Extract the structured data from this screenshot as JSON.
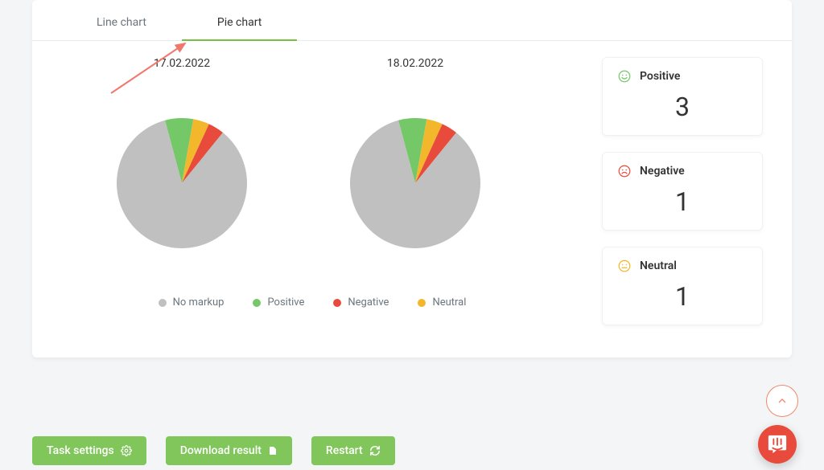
{
  "colors": {
    "accent_green": "#76c043",
    "btn_green": "#80c65b",
    "btn_text": "#ffffff",
    "positive": "#74c868",
    "negative": "#e84a3b",
    "neutral": "#f2b72a",
    "nomarkup": "#c0c0c0",
    "arrow": "#f0796b",
    "scroll_border": "#f08a6a",
    "intercom_bg": "#e84a3b"
  },
  "tabs": [
    {
      "label": "Line chart",
      "active": false
    },
    {
      "label": "Pie chart",
      "active": true
    }
  ],
  "charts": [
    {
      "title": "17.02.2022",
      "type": "pie",
      "slices": [
        {
          "label": "No markup",
          "value": 85,
          "color": "#c0c0c0"
        },
        {
          "label": "Positive",
          "value": 7,
          "color": "#74c868"
        },
        {
          "label": "Neutral",
          "value": 4,
          "color": "#f2b72a"
        },
        {
          "label": "Negative",
          "value": 4,
          "color": "#e84a3b"
        }
      ]
    },
    {
      "title": "18.02.2022",
      "type": "pie",
      "slices": [
        {
          "label": "No markup",
          "value": 85,
          "color": "#c0c0c0"
        },
        {
          "label": "Positive",
          "value": 7,
          "color": "#74c868"
        },
        {
          "label": "Neutral",
          "value": 4,
          "color": "#f2b72a"
        },
        {
          "label": "Negative",
          "value": 4,
          "color": "#e84a3b"
        }
      ]
    }
  ],
  "legend": [
    {
      "label": "No markup",
      "color": "#c0c0c0"
    },
    {
      "label": "Positive",
      "color": "#74c868"
    },
    {
      "label": "Negative",
      "color": "#e84a3b"
    },
    {
      "label": "Neutral",
      "color": "#f2b72a"
    }
  ],
  "stats": [
    {
      "label": "Positive",
      "value": "3",
      "icon_color": "#74c868",
      "face": "smile"
    },
    {
      "label": "Negative",
      "value": "1",
      "icon_color": "#e84a3b",
      "face": "frown"
    },
    {
      "label": "Neutral",
      "value": "1",
      "icon_color": "#f2b72a",
      "face": "neutral"
    }
  ],
  "buttons": {
    "task_settings": "Task settings",
    "download": "Download result",
    "restart": "Restart"
  }
}
